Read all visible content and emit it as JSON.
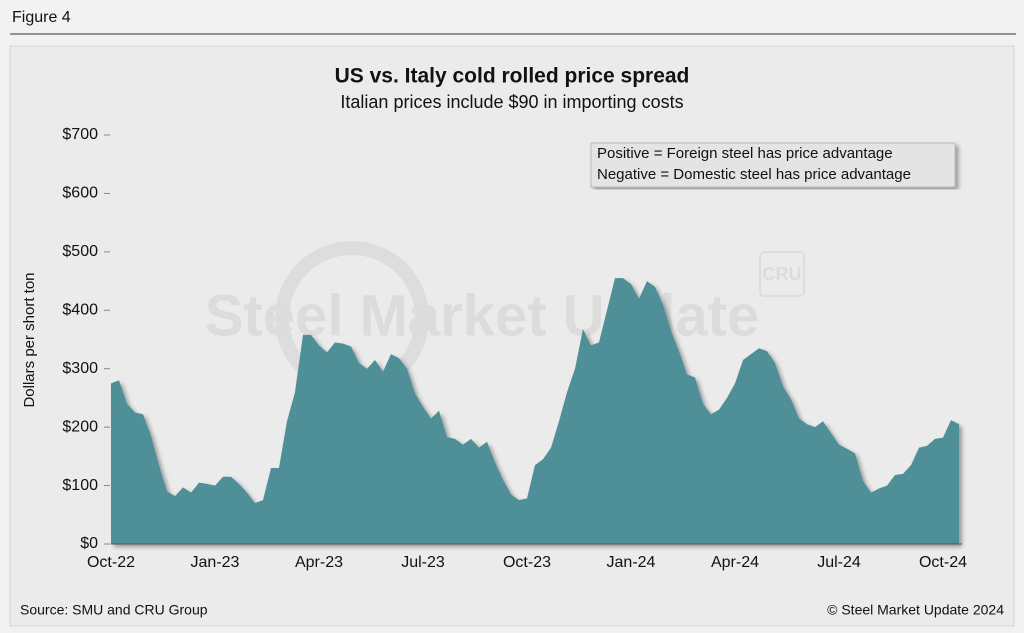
{
  "figure_label": "Figure 4",
  "chart_data": {
    "type": "area",
    "title": "US vs. Italy cold rolled price spread",
    "subtitle": "Italian prices include $90 in importing costs",
    "y_label": "Dollars per short ton",
    "annotations": [
      "Positive = Foreign steel has price advantage",
      "Negative = Domestic steel has price advantage"
    ],
    "watermark": [
      "Steel Market Update",
      "CRU"
    ],
    "categories": [
      "Oct-22",
      null,
      null,
      null,
      null,
      null,
      null,
      null,
      null,
      null,
      null,
      null,
      null,
      "Jan-23",
      null,
      null,
      null,
      null,
      null,
      null,
      null,
      null,
      null,
      null,
      null,
      null,
      "Apr-23",
      null,
      null,
      null,
      null,
      null,
      null,
      null,
      null,
      null,
      null,
      null,
      null,
      "Jul-23",
      null,
      null,
      null,
      null,
      null,
      null,
      null,
      null,
      null,
      null,
      null,
      null,
      "Oct-23",
      null,
      null,
      null,
      null,
      null,
      null,
      null,
      null,
      null,
      null,
      null,
      null,
      "Jan-24",
      null,
      null,
      null,
      null,
      null,
      null,
      null,
      null,
      null,
      null,
      null,
      null,
      "Apr-24",
      null,
      null,
      null,
      null,
      null,
      null,
      null,
      null,
      null,
      null,
      null,
      null,
      "Jul-24",
      null,
      null,
      null,
      null,
      null,
      null,
      null,
      null,
      null,
      null,
      null,
      null,
      "Oct-24",
      null,
      null
    ],
    "values": [
      275,
      280,
      240,
      225,
      222,
      185,
      135,
      90,
      82,
      97,
      88,
      105,
      103,
      100,
      115,
      115,
      103,
      88,
      70,
      75,
      130,
      130,
      210,
      260,
      358,
      358,
      340,
      328,
      345,
      343,
      338,
      310,
      300,
      315,
      295,
      325,
      318,
      300,
      258,
      235,
      215,
      228,
      183,
      180,
      170,
      180,
      165,
      175,
      140,
      110,
      85,
      75,
      78,
      135,
      145,
      165,
      210,
      260,
      300,
      368,
      340,
      345,
      400,
      455,
      455,
      445,
      420,
      450,
      440,
      410,
      365,
      330,
      290,
      285,
      240,
      222,
      230,
      250,
      275,
      315,
      325,
      335,
      330,
      310,
      270,
      248,
      215,
      205,
      200,
      210,
      190,
      170,
      163,
      155,
      108,
      88,
      95,
      100,
      118,
      120,
      135,
      165,
      168,
      180,
      182,
      212,
      205
    ],
    "color": "#4f8f97",
    "ylim": [
      0,
      700
    ],
    "yticks": [
      {
        "value": 0,
        "label": "$0"
      },
      {
        "value": 100,
        "label": "$100"
      },
      {
        "value": 200,
        "label": "$200"
      },
      {
        "value": 300,
        "label": "$300"
      },
      {
        "value": 400,
        "label": "$400"
      },
      {
        "value": 500,
        "label": "$500"
      },
      {
        "value": 600,
        "label": "$600"
      },
      {
        "value": 700,
        "label": "$700"
      }
    ]
  },
  "footer": {
    "source": "Source: SMU and CRU Group",
    "copyright": "© Steel Market Update 2024"
  }
}
